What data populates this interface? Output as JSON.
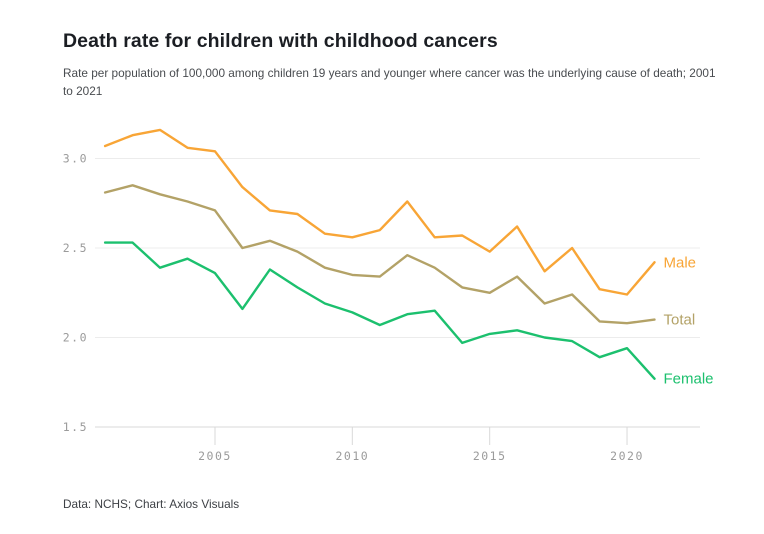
{
  "chart_data": {
    "type": "line",
    "title": "Death rate for children with childhood cancers",
    "subtitle": "Rate per population of 100,000 among children 19 years and younger where cancer was the underlying cause of death; 2001 to 2021",
    "source": "Data: NCHS; Chart: Axios Visuals",
    "x": [
      2001,
      2002,
      2003,
      2004,
      2005,
      2006,
      2007,
      2008,
      2009,
      2010,
      2011,
      2012,
      2013,
      2014,
      2015,
      2016,
      2017,
      2018,
      2019,
      2020,
      2021
    ],
    "series": [
      {
        "name": "Male",
        "color": "#F8A536",
        "values": [
          3.07,
          3.13,
          3.16,
          3.06,
          3.04,
          2.84,
          2.71,
          2.69,
          2.58,
          2.56,
          2.6,
          2.76,
          2.56,
          2.57,
          2.48,
          2.62,
          2.37,
          2.5,
          2.27,
          2.24,
          2.42
        ]
      },
      {
        "name": "Total",
        "color": "#B3A267",
        "values": [
          2.81,
          2.85,
          2.8,
          2.76,
          2.71,
          2.5,
          2.54,
          2.48,
          2.39,
          2.35,
          2.34,
          2.46,
          2.39,
          2.28,
          2.25,
          2.34,
          2.19,
          2.24,
          2.09,
          2.08,
          2.1
        ]
      },
      {
        "name": "Female",
        "color": "#1CC06E",
        "values": [
          2.53,
          2.53,
          2.39,
          2.44,
          2.36,
          2.16,
          2.38,
          2.28,
          2.19,
          2.14,
          2.07,
          2.13,
          2.15,
          1.97,
          2.02,
          2.04,
          2.0,
          1.98,
          1.89,
          1.94,
          1.77
        ]
      }
    ],
    "xticks": [
      2005,
      2010,
      2015,
      2020
    ],
    "xtick_labels": [
      "2005",
      "2010",
      "2015",
      "2020"
    ],
    "yticks": [
      1.5,
      2.0,
      2.5,
      3.0
    ],
    "ytick_labels": [
      "1.5",
      "2.0",
      "2.5",
      "3.0"
    ],
    "xlim": [
      2001,
      2021
    ],
    "ylim": [
      1.5,
      3.3
    ],
    "grid": "horizontal",
    "legend": "line-end-labels",
    "axis_color": "#d9d9d9",
    "grid_color": "#ececec",
    "tick_text_color": "#9b9b9b"
  }
}
